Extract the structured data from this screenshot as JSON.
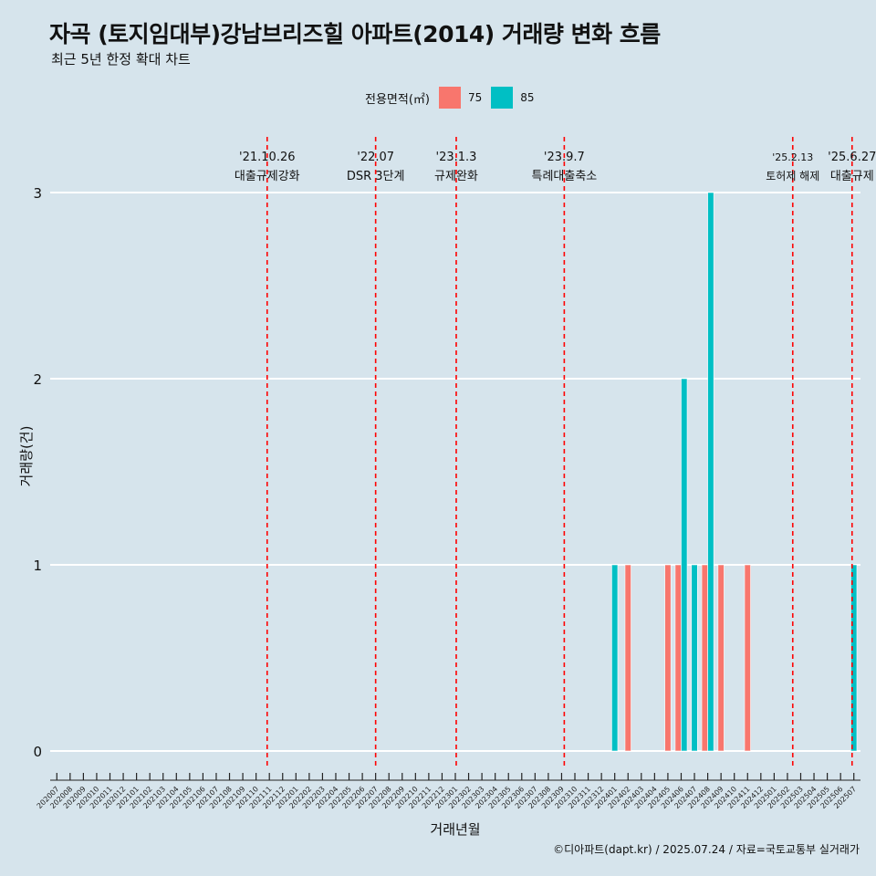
{
  "title": "자곡 (토지임대부)강남브리즈힐 아파트(2014) 거래량 변화 흐름",
  "subtitle": "최근 5년 한정 확대 차트",
  "caption": "©디아파트(dapt.kr) / 2025.07.24 / 자료=국토교통부 실거래가",
  "legend": {
    "title": "전용면적(㎡)",
    "items": [
      {
        "label": "75",
        "color": "#f8766d"
      },
      {
        "label": "85",
        "color": "#00bfc4"
      }
    ]
  },
  "chart_data": {
    "type": "bar",
    "xlabel": "거래년월",
    "ylabel": "거래량(건)",
    "ylim": [
      0,
      3
    ],
    "yticks": [
      0,
      1,
      2,
      3
    ],
    "grid": true,
    "legend_position": "top",
    "categories": [
      "202007",
      "202008",
      "202009",
      "202010",
      "202011",
      "202012",
      "202101",
      "202102",
      "202103",
      "202104",
      "202105",
      "202106",
      "202107",
      "202108",
      "202109",
      "202110",
      "202111",
      "202112",
      "202201",
      "202202",
      "202203",
      "202204",
      "202205",
      "202206",
      "202207",
      "202208",
      "202209",
      "202210",
      "202211",
      "202212",
      "202301",
      "202302",
      "202303",
      "202304",
      "202305",
      "202306",
      "202307",
      "202308",
      "202309",
      "202310",
      "202311",
      "202312",
      "202401",
      "202402",
      "202403",
      "202404",
      "202405",
      "202406",
      "202407",
      "202408",
      "202409",
      "202410",
      "202411",
      "202412",
      "202501",
      "202502",
      "202503",
      "202504",
      "202505",
      "202506",
      "202507"
    ],
    "series": [
      {
        "name": "75",
        "color": "#f8766d",
        "values": [
          0,
          0,
          0,
          0,
          0,
          0,
          0,
          0,
          0,
          0,
          0,
          0,
          0,
          0,
          0,
          0,
          0,
          0,
          0,
          0,
          0,
          0,
          0,
          0,
          0,
          0,
          0,
          0,
          0,
          0,
          0,
          0,
          0,
          0,
          0,
          0,
          0,
          0,
          0,
          0,
          0,
          0,
          0,
          1,
          0,
          0,
          1,
          1,
          0,
          1,
          1,
          0,
          1,
          0,
          0,
          0,
          0,
          0,
          0,
          0,
          0
        ]
      },
      {
        "name": "85",
        "color": "#00bfc4",
        "values": [
          0,
          0,
          0,
          0,
          0,
          0,
          0,
          0,
          0,
          0,
          0,
          0,
          0,
          0,
          0,
          0,
          0,
          0,
          0,
          0,
          0,
          0,
          0,
          0,
          0,
          0,
          0,
          0,
          0,
          0,
          0,
          0,
          0,
          0,
          0,
          0,
          0,
          0,
          0,
          0,
          0,
          0,
          1,
          0,
          0,
          0,
          0,
          2,
          1,
          3,
          0,
          0,
          0,
          0,
          0,
          0,
          0,
          0,
          0,
          0,
          1
        ]
      }
    ],
    "events": [
      {
        "date": "'21.10.26",
        "label": "대출규제강화",
        "month": "2021-10-26"
      },
      {
        "date": "'22.07",
        "label": "DSR 3단계",
        "month": "2022-07-01"
      },
      {
        "date": "'23.1.3",
        "label": "규제완화",
        "month": "2023-01-03"
      },
      {
        "date": "'23.9.7",
        "label": "특례대출축소",
        "month": "2023-09-07"
      },
      {
        "date": "'25.2.13",
        "label": "토허제 해제",
        "month": "2025-02-13"
      },
      {
        "date": "'25.6.27",
        "label": "대출규제",
        "month": "2025-06-27"
      }
    ]
  }
}
